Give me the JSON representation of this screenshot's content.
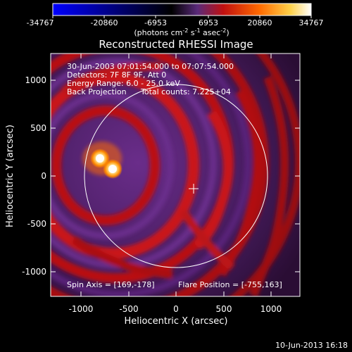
{
  "colorbar": {
    "tick_labels": [
      "-34767",
      "-20860",
      "-6953",
      "6953",
      "20860",
      "34767"
    ],
    "unit_prefix": "(photons cm",
    "unit_sup1": "-2",
    "unit_mid": " s",
    "unit_sup2": "-1",
    "unit_mid2": " asec",
    "unit_sup3": "-2",
    "unit_suffix": ")",
    "colors": [
      "#0000ff",
      "#000000",
      "#5a2a7a",
      "#c01010",
      "#ff6a00",
      "#ffd24a",
      "#ffffff"
    ]
  },
  "image": {
    "title": "Reconstructed RHESSI Image",
    "info_lines": [
      "30-Jun-2003 07:01:54.000 to 07:07:54.000",
      "Detectors: 7F 8F 9F, Att 0",
      "Energy Range: 6.0 - 25.0 keV"
    ],
    "back_projection_label": "Back Projection",
    "total_counts": "Total counts: 7.225+04",
    "spin_axis": "Spin Axis = [169,-178]",
    "flare_position": "Flare Position = [-755,163]"
  },
  "axes": {
    "xlabel": "Heliocentric X (arcsec)",
    "ylabel": "Heliocentric Y (arcsec)",
    "x_ticks": [
      "-1000",
      "-500",
      "0",
      "500",
      "1000"
    ],
    "y_ticks": [
      "1000",
      "500",
      "0",
      "-500",
      "-1000"
    ]
  },
  "timestamp": "10-Jun-2013 16:18"
}
